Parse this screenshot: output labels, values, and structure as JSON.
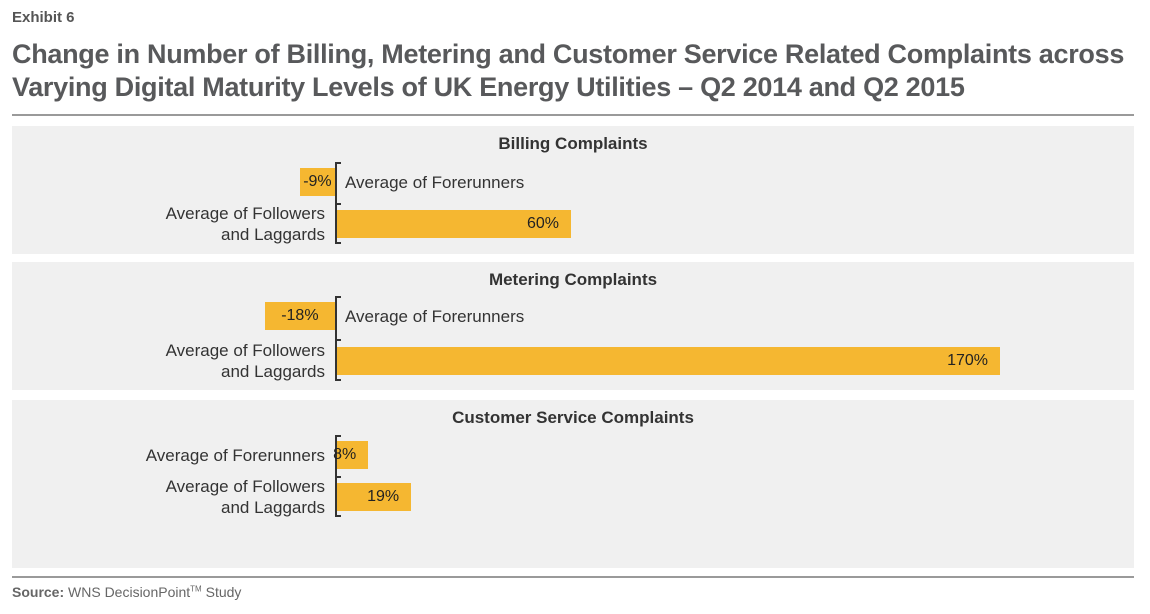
{
  "exhibit": "Exhibit 6",
  "title": "Change in Number of Billing, Metering and Customer Service Related Complaints across Varying Digital Maturity Levels of UK Energy Utilities – Q2 2014 and Q2 2015",
  "source": {
    "label": "Source:",
    "text": "WNS DecisionPoint",
    "tm": "TM",
    "suffix": " Study"
  },
  "colors": {
    "bar": "#f5b731",
    "panel": "#f0f0f0",
    "title": "#58595b"
  },
  "chart_data": [
    {
      "type": "bar",
      "orientation": "horizontal",
      "title": "Billing Complaints",
      "categories": [
        "Average of Forerunners",
        "Average of Followers and Laggards"
      ],
      "values": [
        -9,
        60
      ],
      "data_labels": [
        "-9%",
        "60%"
      ],
      "unit": "%"
    },
    {
      "type": "bar",
      "orientation": "horizontal",
      "title": "Metering Complaints",
      "categories": [
        "Average of Forerunners",
        "Average of Followers and Laggards"
      ],
      "values": [
        -18,
        170
      ],
      "data_labels": [
        "-18%",
        "170%"
      ],
      "unit": "%"
    },
    {
      "type": "bar",
      "orientation": "horizontal",
      "title": "Customer Service Complaints",
      "categories": [
        "Average of Forerunners",
        "Average of Followers and Laggards"
      ],
      "values": [
        8,
        19
      ],
      "data_labels": [
        "8%",
        "19%"
      ],
      "unit": "%"
    }
  ]
}
